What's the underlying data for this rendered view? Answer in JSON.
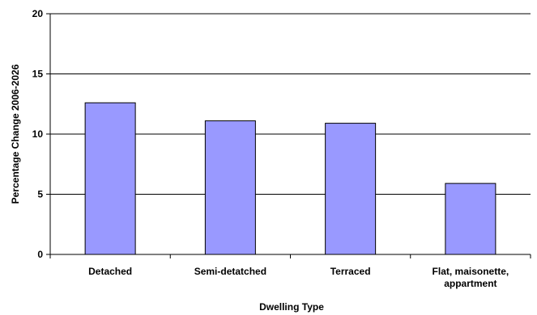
{
  "chart_data": {
    "type": "bar",
    "categories": [
      "Detached",
      "Semi-detatched",
      "Terraced",
      "Flat, maisonette, appartment"
    ],
    "category_lines": [
      [
        "Detached"
      ],
      [
        "Semi-detatched"
      ],
      [
        "Terraced"
      ],
      [
        "Flat, maisonette,",
        "appartment"
      ]
    ],
    "values": [
      12.6,
      11.1,
      10.9,
      5.9
    ],
    "xlabel": "Dwelling Type",
    "ylabel": "Percentage Change 2006-2026",
    "ylim": [
      0,
      20
    ],
    "yticks": [
      0,
      5,
      10,
      15,
      20
    ],
    "grid": true,
    "legend": "none",
    "colors": {
      "bar_fill": "#9999ff",
      "bar_stroke": "#000000",
      "grid": "#000000"
    }
  }
}
